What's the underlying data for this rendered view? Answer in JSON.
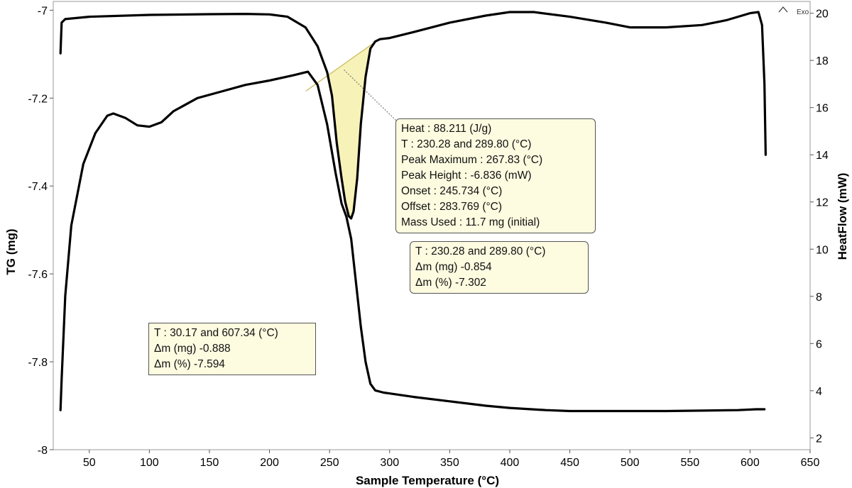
{
  "chart_data": {
    "type": "line",
    "xlabel": "Sample Temperature (°C)",
    "ylabel_left": "TG (mg)",
    "ylabel_right": "HeatFlow (mW)",
    "xlim": [
      20,
      650
    ],
    "ylim_left": [
      -8,
      -6.98
    ],
    "ylim_right": [
      1.5,
      20.5
    ],
    "x_ticks": [
      50,
      100,
      150,
      200,
      250,
      300,
      350,
      400,
      450,
      500,
      550,
      600,
      650
    ],
    "y_left_ticks": [
      -7,
      -7.2,
      -7.4,
      -7.6,
      -7.8,
      -8
    ],
    "y_right_ticks": [
      2,
      4,
      6,
      8,
      10,
      12,
      14,
      16,
      18,
      20
    ],
    "legend": "Exo",
    "grid": false,
    "series": [
      {
        "axis": "left",
        "x": [
          26,
          27,
          30,
          35,
          45,
          55,
          65,
          70,
          80,
          90,
          100,
          110,
          120,
          140,
          160,
          180,
          200,
          220,
          232,
          240,
          248,
          255,
          260,
          264,
          268,
          272,
          276,
          280,
          284,
          288,
          295,
          300,
          320,
          350,
          380,
          400,
          430,
          450,
          480,
          500,
          530,
          560,
          590,
          605,
          612
        ],
        "y": [
          -7.91,
          -7.84,
          -7.65,
          -7.49,
          -7.35,
          -7.28,
          -7.24,
          -7.235,
          -7.245,
          -7.262,
          -7.265,
          -7.255,
          -7.23,
          -7.2,
          -7.185,
          -7.17,
          -7.16,
          -7.148,
          -7.14,
          -7.17,
          -7.26,
          -7.37,
          -7.44,
          -7.47,
          -7.52,
          -7.62,
          -7.72,
          -7.8,
          -7.85,
          -7.865,
          -7.87,
          -7.872,
          -7.88,
          -7.89,
          -7.9,
          -7.905,
          -7.91,
          -7.912,
          -7.912,
          -7.912,
          -7.912,
          -7.911,
          -7.91,
          -7.908,
          -7.908
        ]
      },
      {
        "axis": "right",
        "x": [
          26,
          27,
          30,
          50,
          100,
          150,
          180,
          200,
          215,
          230,
          240,
          248,
          252,
          256,
          260,
          263,
          266,
          268,
          270,
          273,
          276,
          280,
          284,
          288,
          292,
          300,
          320,
          350,
          380,
          400,
          420,
          450,
          480,
          500,
          530,
          560,
          580,
          600,
          607,
          610,
          612,
          613
        ],
        "y": [
          18.3,
          19.6,
          19.75,
          19.85,
          19.93,
          19.96,
          19.97,
          19.95,
          19.85,
          19.4,
          18.6,
          17.5,
          16.5,
          14.5,
          13.0,
          12.0,
          11.4,
          11.3,
          11.6,
          13.0,
          15.3,
          17.3,
          18.5,
          18.8,
          18.9,
          18.95,
          19.2,
          19.6,
          19.9,
          20.05,
          20.05,
          19.85,
          19.6,
          19.4,
          19.4,
          19.5,
          19.7,
          20.0,
          20.05,
          19.5,
          17.0,
          14.0
        ]
      }
    ],
    "baseline": {
      "x": [
        230.28,
        289.8
      ],
      "y_right": [
        16.7,
        18.85
      ]
    },
    "peak": {
      "x": [
        230.28,
        240,
        248,
        252,
        256,
        260,
        263,
        266,
        268,
        270,
        273,
        276,
        280,
        284,
        288,
        289.8
      ],
      "y_right": [
        16.7,
        17.1,
        17.3,
        16.5,
        14.5,
        13.0,
        12.0,
        11.4,
        11.3,
        11.6,
        13.0,
        15.3,
        17.3,
        18.5,
        18.8,
        18.85
      ]
    },
    "annotations": {
      "peak_box": {
        "heat": "Heat :  88.211 (J/g)",
        "t": "T : 230.28 and 289.80 (°C)",
        "peak_max": "Peak Maximum :  267.83 (°C)",
        "peak_height": "Peak Height :  -6.836 (mW)",
        "onset": "Onset :  245.734 (°C)",
        "offset": "Offset :  283.769 (°C)",
        "mass": "Mass Used :  11.7 mg (initial)"
      },
      "step_box": {
        "t": "T : 230.28 and 289.80 (°C)",
        "dm_mg": "Δm (mg) -0.854",
        "dm_pct": "Δm (%) -7.302"
      },
      "total_box": {
        "t": "T : 30.17 and 607.34 (°C)",
        "dm_mg": "Δm (mg) -0.888",
        "dm_pct": "Δm (%) -7.594"
      }
    }
  }
}
